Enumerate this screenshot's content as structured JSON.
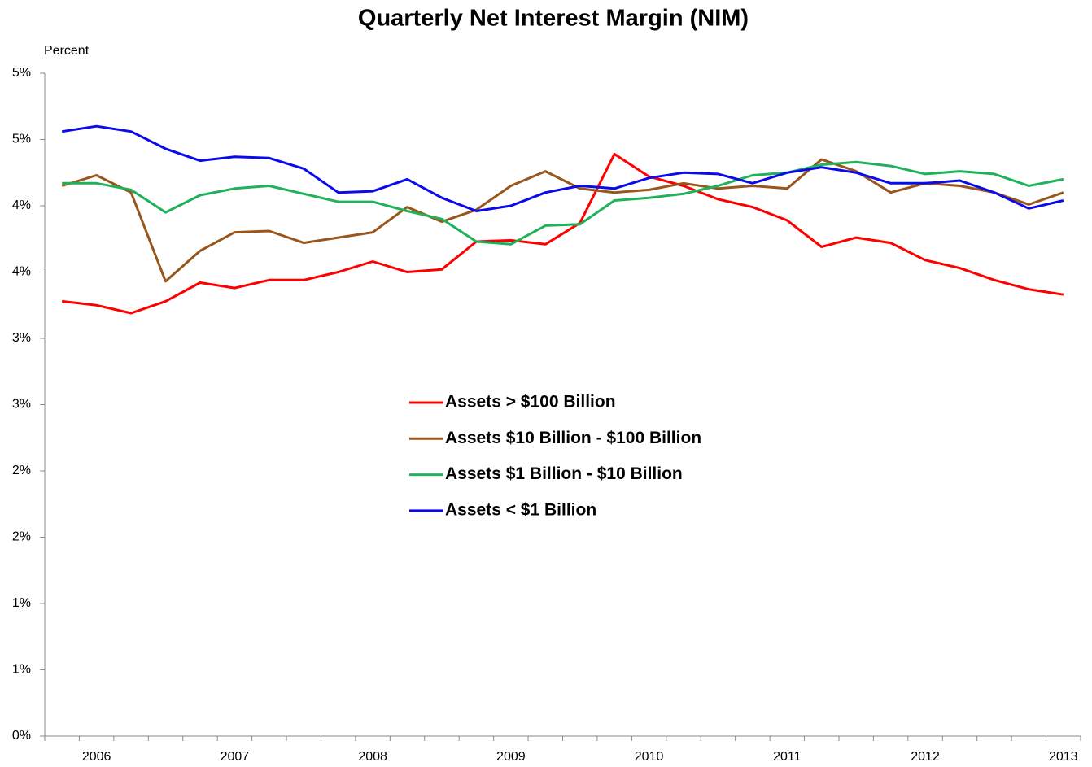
{
  "chart_data": {
    "type": "line",
    "title": "Quarterly Net Interest Margin (NIM)",
    "y_label": "Percent",
    "categories": [
      null,
      "2006",
      null,
      null,
      null,
      "2007",
      null,
      null,
      null,
      "2008",
      null,
      null,
      null,
      "2009",
      null,
      null,
      null,
      "2010",
      null,
      null,
      null,
      "2011",
      null,
      null,
      null,
      "2012",
      null,
      null,
      null,
      "2013"
    ],
    "series": [
      {
        "name": "Assets > $100 Billion",
        "color": "#ff0000",
        "values": [
          3.28,
          3.25,
          3.19,
          3.28,
          3.42,
          3.38,
          3.44,
          3.44,
          3.5,
          3.58,
          3.5,
          3.52,
          3.73,
          3.74,
          3.71,
          3.87,
          4.39,
          4.22,
          4.15,
          4.05,
          3.99,
          3.89,
          3.69,
          3.76,
          3.72,
          3.59,
          3.53,
          3.44,
          3.37,
          3.33
        ]
      },
      {
        "name": "Assets $10 Billion - $100 Billion",
        "color": "#99561c",
        "values": [
          4.15,
          4.23,
          4.1,
          3.43,
          3.66,
          3.8,
          3.81,
          3.72,
          3.76,
          3.8,
          3.99,
          3.88,
          3.97,
          4.15,
          4.26,
          4.13,
          4.1,
          4.12,
          4.17,
          4.13,
          4.15,
          4.13,
          4.35,
          4.26,
          4.1,
          4.17,
          4.15,
          4.1,
          4.01,
          4.1
        ]
      },
      {
        "name": "Assets $1 Billion - $10 Billion",
        "color": "#1fb25a",
        "values": [
          4.17,
          4.17,
          4.12,
          3.95,
          4.08,
          4.13,
          4.15,
          4.09,
          4.03,
          4.03,
          3.96,
          3.9,
          3.73,
          3.71,
          3.85,
          3.86,
          4.04,
          4.06,
          4.09,
          4.15,
          4.23,
          4.25,
          4.31,
          4.33,
          4.3,
          4.24,
          4.26,
          4.24,
          4.15,
          4.2
        ]
      },
      {
        "name": "Assets < $1 Billion",
        "color": "#0a0aeb",
        "values": [
          4.56,
          4.6,
          4.56,
          4.43,
          4.34,
          4.37,
          4.36,
          4.28,
          4.1,
          4.11,
          4.2,
          4.06,
          3.96,
          4.0,
          4.1,
          4.15,
          4.13,
          4.21,
          4.25,
          4.24,
          4.17,
          4.25,
          4.29,
          4.25,
          4.17,
          4.17,
          4.19,
          4.1,
          3.98,
          4.04
        ]
      }
    ],
    "ylim": [
      0,
      5
    ],
    "yticks": [
      {
        "value": 0,
        "label": "0%"
      },
      {
        "value": 0.5,
        "label": "1%"
      },
      {
        "value": 1,
        "label": "1%"
      },
      {
        "value": 1.5,
        "label": "2%"
      },
      {
        "value": 2,
        "label": "2%"
      },
      {
        "value": 2.5,
        "label": "3%"
      },
      {
        "value": 3,
        "label": "3%"
      },
      {
        "value": 3.5,
        "label": "4%"
      },
      {
        "value": 4,
        "label": "4%"
      },
      {
        "value": 4.5,
        "label": "5%"
      },
      {
        "value": 5,
        "label": "5%"
      }
    ],
    "grid": false,
    "legend": "center"
  }
}
